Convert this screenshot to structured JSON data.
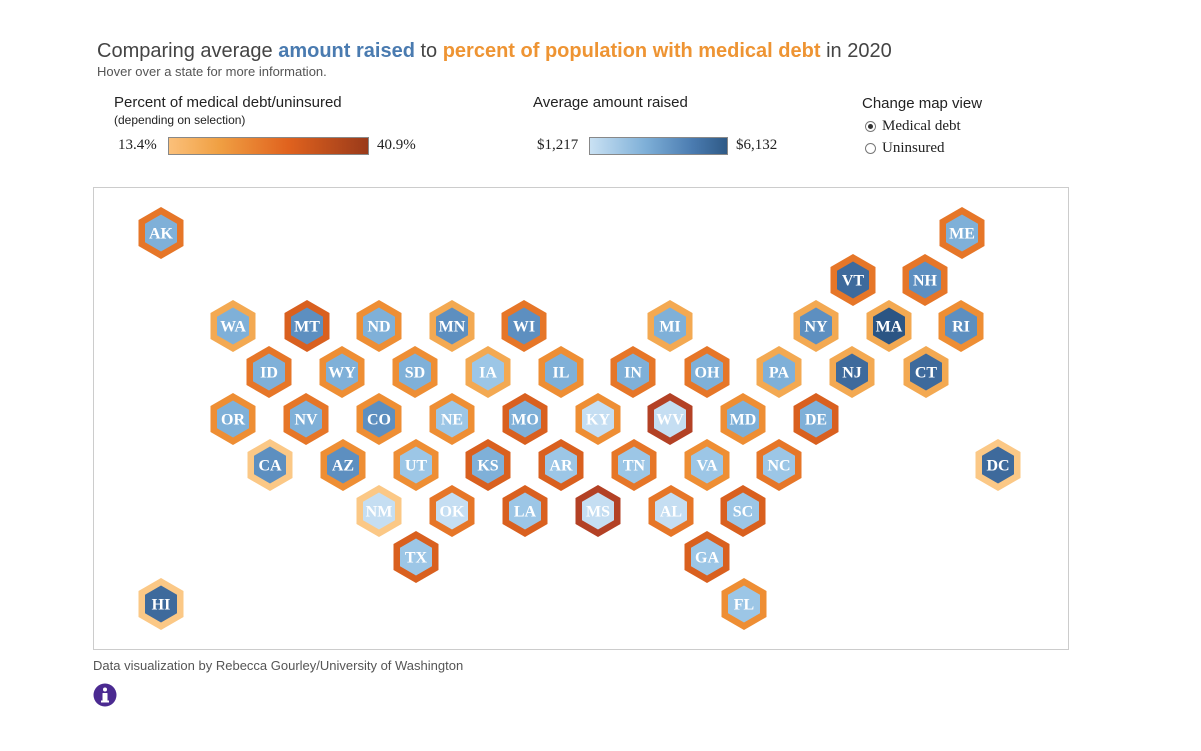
{
  "title": {
    "part1": "Comparing average ",
    "part2": "amount raised",
    "part3": " to ",
    "part4": "percent of population with medical debt",
    "part5": " in 2020"
  },
  "subtitle": "Hover over a state for more information.",
  "legend_debt": {
    "title": "Percent of medical debt/uninsured",
    "subtitle": "(depending on selection)",
    "min": "13.4%",
    "max": "40.9%"
  },
  "legend_raised": {
    "title": "Average amount raised",
    "min": "$1,217",
    "max": "$6,132"
  },
  "map_view": {
    "title": "Change map view",
    "options": [
      {
        "label": "Medical debt",
        "selected": true
      },
      {
        "label": "Uninsured",
        "selected": false
      }
    ]
  },
  "colors": {
    "text": "#ffffff",
    "fill": [
      "#c5def2",
      "#9cc6e6",
      "#7fb0d8",
      "#5d8fc0",
      "#3e6a9c",
      "#2b5584"
    ],
    "ring": [
      "#fbc886",
      "#f3a952",
      "#ee8e34",
      "#e67628",
      "#d9601f",
      "#b34125"
    ]
  },
  "states": [
    {
      "abbr": "AK",
      "fill": 2,
      "ring": 3
    },
    {
      "abbr": "ME",
      "fill": 2,
      "ring": 3
    },
    {
      "abbr": "VT",
      "fill": 4,
      "ring": 3
    },
    {
      "abbr": "NH",
      "fill": 3,
      "ring": 3
    },
    {
      "abbr": "WA",
      "fill": 2,
      "ring": 1
    },
    {
      "abbr": "MT",
      "fill": 3,
      "ring": 4
    },
    {
      "abbr": "ND",
      "fill": 2,
      "ring": 2
    },
    {
      "abbr": "MN",
      "fill": 3,
      "ring": 1
    },
    {
      "abbr": "WI",
      "fill": 3,
      "ring": 3
    },
    {
      "abbr": "MI",
      "fill": 2,
      "ring": 1
    },
    {
      "abbr": "NY",
      "fill": 3,
      "ring": 1
    },
    {
      "abbr": "MA",
      "fill": 5,
      "ring": 1
    },
    {
      "abbr": "RI",
      "fill": 3,
      "ring": 2
    },
    {
      "abbr": "ID",
      "fill": 2,
      "ring": 3
    },
    {
      "abbr": "WY",
      "fill": 2,
      "ring": 2
    },
    {
      "abbr": "SD",
      "fill": 2,
      "ring": 2
    },
    {
      "abbr": "IA",
      "fill": 1,
      "ring": 1
    },
    {
      "abbr": "IL",
      "fill": 2,
      "ring": 2
    },
    {
      "abbr": "IN",
      "fill": 2,
      "ring": 3
    },
    {
      "abbr": "OH",
      "fill": 2,
      "ring": 3
    },
    {
      "abbr": "PA",
      "fill": 2,
      "ring": 1
    },
    {
      "abbr": "NJ",
      "fill": 4,
      "ring": 1
    },
    {
      "abbr": "CT",
      "fill": 4,
      "ring": 1
    },
    {
      "abbr": "OR",
      "fill": 2,
      "ring": 2
    },
    {
      "abbr": "NV",
      "fill": 2,
      "ring": 3
    },
    {
      "abbr": "CO",
      "fill": 3,
      "ring": 2
    },
    {
      "abbr": "NE",
      "fill": 1,
      "ring": 2
    },
    {
      "abbr": "MO",
      "fill": 2,
      "ring": 4
    },
    {
      "abbr": "KY",
      "fill": 0,
      "ring": 2
    },
    {
      "abbr": "WV",
      "fill": 0,
      "ring": 5
    },
    {
      "abbr": "MD",
      "fill": 2,
      "ring": 2
    },
    {
      "abbr": "DE",
      "fill": 2,
      "ring": 4
    },
    {
      "abbr": "CA",
      "fill": 3,
      "ring": 0
    },
    {
      "abbr": "AZ",
      "fill": 3,
      "ring": 2
    },
    {
      "abbr": "UT",
      "fill": 1,
      "ring": 2
    },
    {
      "abbr": "KS",
      "fill": 2,
      "ring": 4
    },
    {
      "abbr": "AR",
      "fill": 1,
      "ring": 4
    },
    {
      "abbr": "TN",
      "fill": 1,
      "ring": 3
    },
    {
      "abbr": "VA",
      "fill": 1,
      "ring": 2
    },
    {
      "abbr": "NC",
      "fill": 1,
      "ring": 3
    },
    {
      "abbr": "DC",
      "fill": 4,
      "ring": 0
    },
    {
      "abbr": "NM",
      "fill": 0,
      "ring": 0
    },
    {
      "abbr": "OK",
      "fill": 0,
      "ring": 3
    },
    {
      "abbr": "LA",
      "fill": 1,
      "ring": 4
    },
    {
      "abbr": "MS",
      "fill": 0,
      "ring": 5
    },
    {
      "abbr": "AL",
      "fill": 0,
      "ring": 3
    },
    {
      "abbr": "SC",
      "fill": 1,
      "ring": 4
    },
    {
      "abbr": "TX",
      "fill": 1,
      "ring": 4
    },
    {
      "abbr": "GA",
      "fill": 1,
      "ring": 4
    },
    {
      "abbr": "HI",
      "fill": 4,
      "ring": 0
    },
    {
      "abbr": "FL",
      "fill": 1,
      "ring": 2
    }
  ],
  "footer": "Data visualization by Rebecca Gourley/University of Washington",
  "info_icon": "info-icon"
}
